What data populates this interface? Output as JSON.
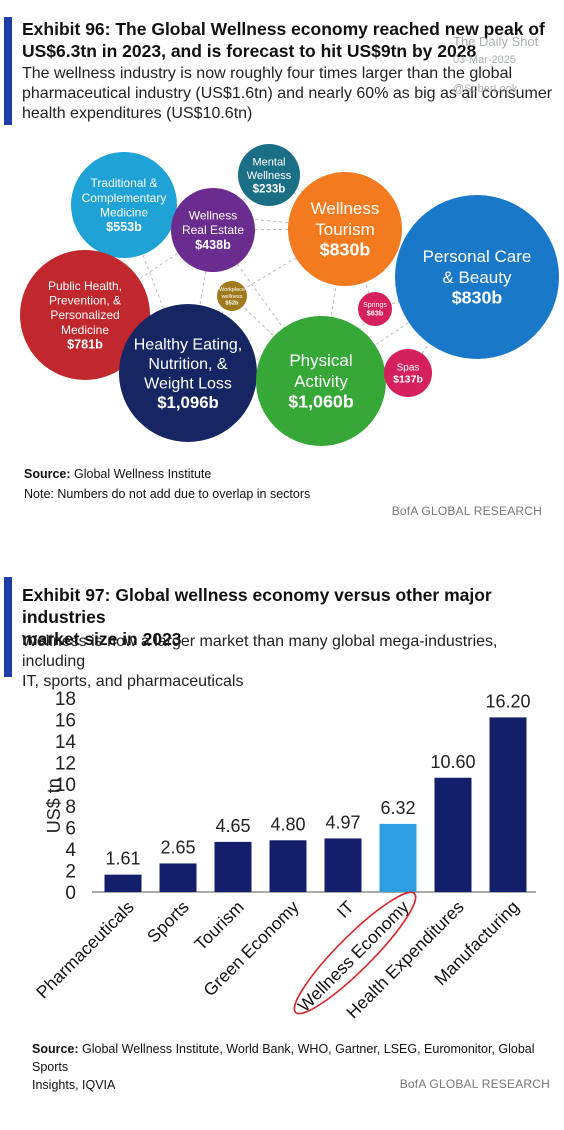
{
  "watermark": {
    "site": "The Daily Shot",
    "date": "03-Mar-2025",
    "handle": "@SoberLook"
  },
  "exhibit96": {
    "title_line1": "Exhibit 96: The Global Wellness economy reached new peak of",
    "title_line2": "US$6.3tn in 2023, and is forecast to hit US$9tn by 2028",
    "subtitle_line1": "The wellness industry is now roughly four times larger than the global",
    "subtitle_line2": "pharmaceutical industry (US$1.6tn) and nearly 60% as big as all consumer",
    "subtitle_line3": "health expenditures (US$10.6tn)",
    "source_label": "Source:",
    "source_text": " Global Wellness Institute",
    "note": "Note: Numbers do not add due to overlap in sectors",
    "brand": "BofA GLOBAL RESEARCH"
  },
  "exhibit97": {
    "title_line1": "Exhibit 97: Global wellness economy versus other major industries",
    "title_line2": "market size in 2023",
    "subtitle_line1": "Wellness is now a larger market than many global mega-industries, including",
    "subtitle_line2": "IT, sports, and pharmaceuticals",
    "source_label": "Source:",
    "source_text": " Global Wellness Institute, World Bank, WHO, Gartner, LSEG, Euromonitor, Global Sports",
    "source_text2": "Insights, IQVIA",
    "brand": "BofA GLOBAL RESEARCH"
  },
  "chart_data": [
    {
      "type": "bubble",
      "title": "Exhibit 96",
      "colors": {
        "teal": "#1fa3d6",
        "purple": "#6a2c8f",
        "darkteal": "#1a6f86",
        "orange": "#f47a1f",
        "blue": "#1a78c9",
        "red": "#c0282e",
        "navy": "#152663",
        "green": "#36a837",
        "pink": "#d6205e",
        "olive": "#a07a1c"
      },
      "bubbles": [
        {
          "label": [
            "Traditional &",
            "Complementary",
            "Medicine"
          ],
          "value": "$553b",
          "color": "teal"
        },
        {
          "label": [
            "Wellness",
            "Real Estate"
          ],
          "value": "$438b",
          "color": "purple"
        },
        {
          "label": [
            "Mental",
            "Wellness"
          ],
          "value": "$233b",
          "color": "darkteal"
        },
        {
          "label": [
            "Wellness",
            "Tourism"
          ],
          "value": "$830b",
          "color": "orange"
        },
        {
          "label": [
            "Personal Care",
            "& Beauty"
          ],
          "value": "$830b",
          "color": "blue"
        },
        {
          "label": [
            "Public Health,",
            "Prevention, &",
            "Personalized",
            "Medicine"
          ],
          "value": "$781b",
          "color": "red"
        },
        {
          "label": [
            "Workplace",
            "wellness"
          ],
          "value": "$52b",
          "color": "olive"
        },
        {
          "label": [
            "Springs"
          ],
          "value": "$63b",
          "color": "pink"
        },
        {
          "label": [
            "Healthy Eating,",
            "Nutrition, &",
            "Weight Loss"
          ],
          "value": "$1,096b",
          "color": "navy"
        },
        {
          "label": [
            "Physical",
            "Activity"
          ],
          "value": "$1,060b",
          "color": "green"
        },
        {
          "label": [
            "Spas"
          ],
          "value": "$137b",
          "color": "pink"
        }
      ]
    },
    {
      "type": "bar",
      "title": "Exhibit 97",
      "ylabel": "US$ tn",
      "ylim": [
        0,
        18
      ],
      "yticks": [
        "0",
        "2",
        "4",
        "6",
        "8",
        "10",
        "12",
        "14",
        "16",
        "18"
      ],
      "categories": [
        "Pharmaceuticals",
        "Sports",
        "Tourism",
        "Green Economy",
        "IT",
        "Wellness Economy",
        "Health Expenditures",
        "Manufacturing"
      ],
      "values": [
        1.61,
        2.65,
        4.65,
        4.8,
        4.97,
        6.32,
        10.6,
        16.2
      ],
      "value_labels": [
        "1.61",
        "2.65",
        "4.65",
        "4.80",
        "4.97",
        "6.32",
        "10.60",
        "16.20"
      ],
      "highlight": "Wellness Economy",
      "bar_color": "#131f6b",
      "highlight_color": "#2d9fe0",
      "circle_color": "#d9272e",
      "grid": false
    }
  ]
}
